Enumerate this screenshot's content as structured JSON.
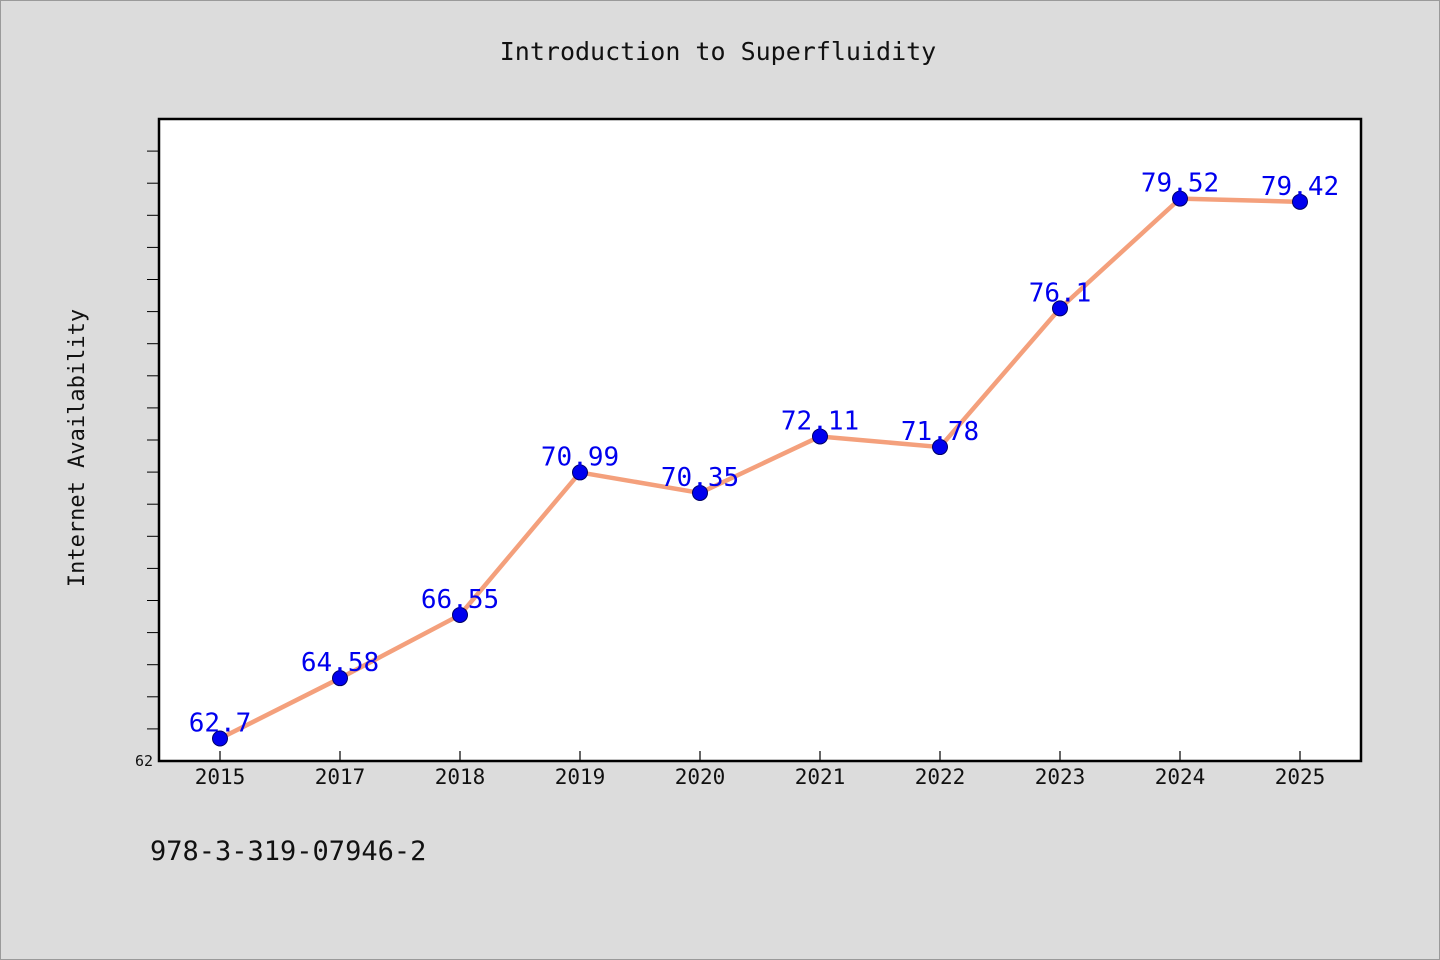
{
  "chart_data": {
    "type": "line",
    "title": "Introduction to Superfluidity",
    "xlabel": "",
    "ylabel": "Internet Availability",
    "categories": [
      "2015",
      "2017",
      "2018",
      "2019",
      "2020",
      "2021",
      "2022",
      "2023",
      "2024",
      "2025"
    ],
    "series": [
      {
        "values": [
          62.7,
          64.58,
          66.55,
          70.99,
          70.35,
          72.11,
          71.78,
          76.1,
          79.52,
          79.42
        ],
        "labels": [
          "62.7",
          "64.58",
          "66.55",
          "70.99",
          "70.35",
          "72.11",
          "71.78",
          "76.1",
          "79.52",
          "79.42"
        ],
        "line_color": "#f4a07c",
        "marker_color": "#0000ee"
      }
    ],
    "ytick_labels": [
      "62"
    ],
    "ylim": [
      62,
      82
    ],
    "grid": false,
    "legend": "none"
  },
  "footer": {
    "isbn": "978-3-319-07946-2"
  }
}
